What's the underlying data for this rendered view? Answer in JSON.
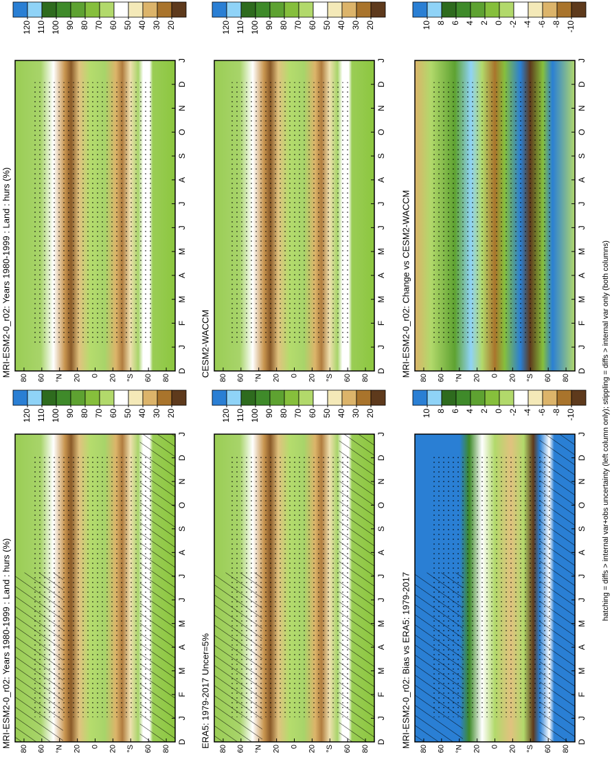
{
  "chart_data": [
    {
      "type": "contour",
      "title": "MRI-ESM2-0_r02: Years 1980-1999 : Land : hurs (%)",
      "categories": [
        "D",
        "J",
        "F",
        "M",
        "A",
        "M",
        "J",
        "J",
        "A",
        "S",
        "O",
        "N",
        "D",
        "J"
      ],
      "ylim": [
        90,
        -90
      ],
      "yticks": [
        80,
        60,
        {
          "value": 40,
          "label": "°N"
        },
        20,
        0,
        {
          "value": -20,
          "label": "20"
        },
        {
          "value": -40,
          "label": "°S"
        },
        {
          "value": -60,
          "label": "60"
        },
        {
          "value": -80,
          "label": "80"
        }
      ],
      "colorbar": {
        "colors": [
          "#2a7fd4",
          "#8fd3f7",
          "#2e6b1e",
          "#3f8a2a",
          "#5ea231",
          "#86bf3c",
          "#b2d96b",
          "#ffffff",
          "#f4e9b8",
          "#dcb46a",
          "#a9742c",
          "#5e3a1c"
        ],
        "ticks": [
          120,
          110,
          100,
          90,
          80,
          70,
          60,
          50,
          40,
          30,
          20
        ]
      },
      "hatching": true,
      "stippling": true
    },
    {
      "type": "contour",
      "title": "MRI-ESM2-0_r02: Years 1980-1999 : Land : hurs (%)",
      "categories": [
        "D",
        "J",
        "F",
        "M",
        "A",
        "M",
        "J",
        "J",
        "A",
        "S",
        "O",
        "N",
        "D",
        "J"
      ],
      "ylim": [
        90,
        -90
      ],
      "yticks": [
        80,
        60,
        {
          "value": 40,
          "label": "°N"
        },
        20,
        0,
        {
          "value": -20,
          "label": "20"
        },
        {
          "value": -40,
          "label": "°S"
        },
        {
          "value": -60,
          "label": "60"
        },
        {
          "value": -80,
          "label": "80"
        }
      ],
      "colorbar": {
        "colors": [
          "#2a7fd4",
          "#8fd3f7",
          "#2e6b1e",
          "#3f8a2a",
          "#5ea231",
          "#86bf3c",
          "#b2d96b",
          "#ffffff",
          "#f4e9b8",
          "#dcb46a",
          "#a9742c",
          "#5e3a1c"
        ],
        "ticks": [
          120,
          110,
          100,
          90,
          80,
          70,
          60,
          50,
          40,
          30,
          20
        ]
      },
      "hatching": false,
      "stippling": true
    },
    {
      "type": "contour",
      "title": "ERA5: 1979-2017 Uncer=5%",
      "categories": [
        "D",
        "J",
        "F",
        "M",
        "A",
        "M",
        "J",
        "J",
        "A",
        "S",
        "O",
        "N",
        "D",
        "J"
      ],
      "ylim": [
        90,
        -90
      ],
      "yticks": [
        80,
        60,
        {
          "value": 40,
          "label": "°N"
        },
        20,
        0,
        {
          "value": -20,
          "label": "20"
        },
        {
          "value": -40,
          "label": "°S"
        },
        {
          "value": -60,
          "label": "60"
        },
        {
          "value": -80,
          "label": "80"
        }
      ],
      "colorbar": {
        "colors": [
          "#2a7fd4",
          "#8fd3f7",
          "#2e6b1e",
          "#3f8a2a",
          "#5ea231",
          "#86bf3c",
          "#b2d96b",
          "#ffffff",
          "#f4e9b8",
          "#dcb46a",
          "#a9742c",
          "#5e3a1c"
        ],
        "ticks": [
          120,
          110,
          100,
          90,
          80,
          70,
          60,
          50,
          40,
          30,
          20
        ]
      },
      "hatching": true,
      "stippling": true
    },
    {
      "type": "contour",
      "title": "CESM2-WACCM",
      "categories": [
        "D",
        "J",
        "F",
        "M",
        "A",
        "M",
        "J",
        "J",
        "A",
        "S",
        "O",
        "N",
        "D",
        "J"
      ],
      "ylim": [
        90,
        -90
      ],
      "yticks": [
        80,
        60,
        {
          "value": 40,
          "label": "°N"
        },
        20,
        0,
        {
          "value": -20,
          "label": "20"
        },
        {
          "value": -40,
          "label": "°S"
        },
        {
          "value": -60,
          "label": "60"
        },
        {
          "value": -80,
          "label": "80"
        }
      ],
      "colorbar": {
        "colors": [
          "#2a7fd4",
          "#8fd3f7",
          "#2e6b1e",
          "#3f8a2a",
          "#5ea231",
          "#86bf3c",
          "#b2d96b",
          "#ffffff",
          "#f4e9b8",
          "#dcb46a",
          "#a9742c",
          "#5e3a1c"
        ],
        "ticks": [
          120,
          110,
          100,
          90,
          80,
          70,
          60,
          50,
          40,
          30,
          20
        ]
      },
      "hatching": false,
      "stippling": true
    },
    {
      "type": "contour",
      "title": "MRI-ESM2-0_r02: Bias vs ERA5: 1979-2017",
      "categories": [
        "D",
        "J",
        "F",
        "M",
        "A",
        "M",
        "J",
        "J",
        "A",
        "S",
        "O",
        "N",
        "D",
        "J"
      ],
      "ylim": [
        90,
        -90
      ],
      "yticks": [
        80,
        60,
        {
          "value": 40,
          "label": "°N"
        },
        20,
        0,
        {
          "value": -20,
          "label": "20"
        },
        {
          "value": -40,
          "label": "°S"
        },
        {
          "value": -60,
          "label": "60"
        },
        {
          "value": -80,
          "label": "80"
        }
      ],
      "colorbar": {
        "colors": [
          "#2a7fd4",
          "#8fd3f7",
          "#2e6b1e",
          "#3f8a2a",
          "#5ea231",
          "#86bf3c",
          "#b2d96b",
          "#ffffff",
          "#f4e9b8",
          "#dcb46a",
          "#a9742c",
          "#5e3a1c"
        ],
        "ticks": [
          10,
          8,
          6,
          4,
          2,
          0,
          -2,
          -4,
          -6,
          -8,
          -10
        ]
      },
      "hatching": true,
      "stippling": true
    },
    {
      "type": "contour",
      "title": "MRI-ESM2-0_r02: Change vs CESM2-WACCM",
      "categories": [
        "D",
        "J",
        "F",
        "M",
        "A",
        "M",
        "J",
        "J",
        "A",
        "S",
        "O",
        "N",
        "D",
        "J"
      ],
      "ylim": [
        90,
        -90
      ],
      "yticks": [
        80,
        60,
        {
          "value": 40,
          "label": "°N"
        },
        20,
        0,
        {
          "value": -20,
          "label": "20"
        },
        {
          "value": -40,
          "label": "°S"
        },
        {
          "value": -60,
          "label": "60"
        },
        {
          "value": -80,
          "label": "80"
        }
      ],
      "colorbar": {
        "colors": [
          "#2a7fd4",
          "#8fd3f7",
          "#2e6b1e",
          "#3f8a2a",
          "#5ea231",
          "#86bf3c",
          "#b2d96b",
          "#ffffff",
          "#f4e9b8",
          "#dcb46a",
          "#a9742c",
          "#5e3a1c"
        ],
        "ticks": [
          10,
          8,
          6,
          4,
          2,
          0,
          -2,
          -4,
          -6,
          -8,
          -10
        ]
      },
      "hatching": false,
      "stippling": true
    }
  ],
  "caption": "hatching = diffs > internal var+obs uncertainty (left column only); stippling = diffs > internal var only (both columns)"
}
